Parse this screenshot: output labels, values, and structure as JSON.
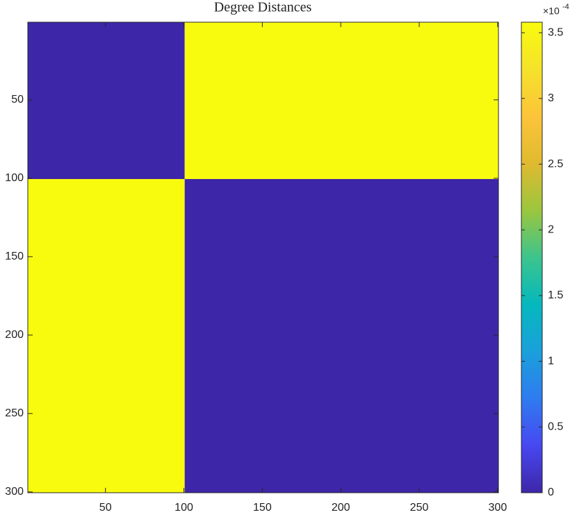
{
  "chart_data": {
    "type": "heatmap",
    "title": "Degree Distances",
    "xbins": [
      0.5,
      100.5,
      300.5
    ],
    "ybins": [
      0.5,
      100.5,
      300.5
    ],
    "values": [
      [
        0,
        3.58
      ],
      [
        3.58,
        0
      ]
    ],
    "xlim": [
      0.5,
      300.5
    ],
    "xticks": [
      50,
      100,
      150,
      200,
      250,
      300
    ],
    "ylim": [
      0.5,
      300.5
    ],
    "yticks": [
      50,
      100,
      150,
      200,
      250,
      300
    ],
    "y_reversed": true,
    "clim": [
      0,
      3.58
    ],
    "cticks": [
      0,
      0.5,
      1,
      1.5,
      2,
      2.5,
      3,
      3.5
    ],
    "colorbar_multiplier": {
      "base": "×10",
      "exponent": "-4"
    },
    "colormap": [
      "#3e26a8",
      "#4748f1",
      "#2f7bf0",
      "#1aa0db",
      "#05b8bd",
      "#3cc48d",
      "#9bc63e",
      "#e0ba30",
      "#fcc43a",
      "#f5e22a",
      "#f9fb0e"
    ]
  }
}
